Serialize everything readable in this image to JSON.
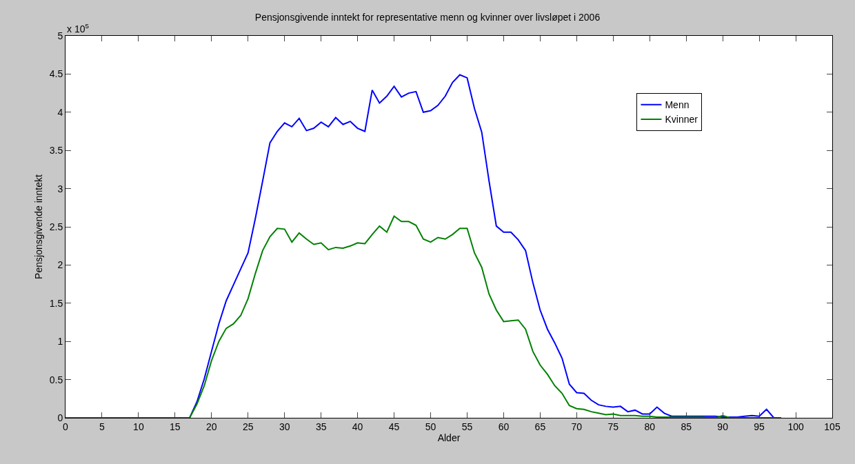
{
  "chart_data": {
    "type": "line",
    "title": "Pensjonsgivende inntekt for representative menn og kvinner over livsløpet i 2006",
    "xlabel": "Alder",
    "ylabel": "Pensjonsgivende inntekt",
    "annotations": [
      "x 10$^{5}$"
    ],
    "x": [
      0,
      1,
      2,
      3,
      4,
      5,
      6,
      7,
      8,
      9,
      10,
      11,
      12,
      13,
      14,
      15,
      16,
      17,
      18,
      19,
      20,
      21,
      22,
      23,
      24,
      25,
      26,
      27,
      28,
      29,
      30,
      31,
      32,
      33,
      34,
      35,
      36,
      37,
      38,
      39,
      40,
      41,
      42,
      43,
      44,
      45,
      46,
      47,
      48,
      49,
      50,
      51,
      52,
      53,
      54,
      55,
      56,
      57,
      58,
      59,
      60,
      61,
      62,
      63,
      64,
      65,
      66,
      67,
      68,
      69,
      70,
      71,
      72,
      73,
      74,
      75,
      76,
      77,
      78,
      79,
      80,
      81,
      82,
      83,
      84,
      85,
      86,
      87,
      88,
      89,
      90,
      91,
      92,
      93,
      94,
      95,
      96,
      97,
      98
    ],
    "series": [
      {
        "name": "Menn",
        "color": "#0000ff",
        "values": [
          null,
          null,
          null,
          null,
          null,
          null,
          null,
          null,
          null,
          null,
          null,
          null,
          null,
          null,
          null,
          null,
          0,
          0,
          0.21,
          0.51,
          0.87,
          1.23,
          1.53,
          1.74,
          1.95,
          2.16,
          2.61,
          3.1,
          3.6,
          3.75,
          3.86,
          3.81,
          3.92,
          3.76,
          3.79,
          3.87,
          3.81,
          3.93,
          3.84,
          3.88,
          3.79,
          3.75,
          4.29,
          4.12,
          4.21,
          4.34,
          4.2,
          4.25,
          4.27,
          4.0,
          4.02,
          4.09,
          4.21,
          4.39,
          4.49,
          4.45,
          4.05,
          3.74,
          3.1,
          2.51,
          2.43,
          2.43,
          2.33,
          2.19,
          1.77,
          1.41,
          1.16,
          0.98,
          0.78,
          0.44,
          0.33,
          0.32,
          0.23,
          0.17,
          0.15,
          0.14,
          0.15,
          0.08,
          0.1,
          0.05,
          0.05,
          0.14,
          0.06,
          0.02,
          0.02,
          0.02,
          0.02,
          0.02,
          0.02,
          0.02,
          0.01,
          0.01,
          0.01,
          0.02,
          0.03,
          0.02,
          0.11,
          0,
          0
        ]
      },
      {
        "name": "Kvinner",
        "color": "#008000",
        "values": [
          0,
          0,
          0,
          0,
          0,
          0,
          0,
          0,
          0,
          0,
          0,
          0,
          0,
          0,
          0,
          0,
          0,
          0,
          0.18,
          0.42,
          0.75,
          1.0,
          1.17,
          1.23,
          1.34,
          1.56,
          1.89,
          2.19,
          2.37,
          2.48,
          2.47,
          2.3,
          2.42,
          2.34,
          2.27,
          2.29,
          2.2,
          2.23,
          2.22,
          2.25,
          2.29,
          2.28,
          2.4,
          2.51,
          2.43,
          2.64,
          2.57,
          2.57,
          2.52,
          2.34,
          2.3,
          2.36,
          2.34,
          2.4,
          2.48,
          2.48,
          2.16,
          1.97,
          1.62,
          1.41,
          1.26,
          1.27,
          1.28,
          1.16,
          0.87,
          0.69,
          0.57,
          0.42,
          0.32,
          0.16,
          0.12,
          0.11,
          0.08,
          0.06,
          0.04,
          0.05,
          0.03,
          0.03,
          0.03,
          0.02,
          0.02,
          0.01,
          0.01,
          0.01,
          0.01,
          0.01,
          0.01,
          0.01,
          0,
          0,
          0.03,
          0,
          0,
          0,
          0,
          0,
          0,
          0,
          0
        ]
      }
    ],
    "xlim": [
      0,
      105
    ],
    "xticks": [
      0,
      5,
      10,
      15,
      20,
      25,
      30,
      35,
      40,
      45,
      50,
      55,
      60,
      65,
      70,
      75,
      80,
      85,
      90,
      95,
      100,
      105
    ],
    "ylim": [
      0,
      5
    ],
    "yticks": [
      0,
      0.5,
      1,
      1.5,
      2,
      2.5,
      3,
      3.5,
      4,
      4.5,
      5
    ],
    "grid": false,
    "legend": "top right",
    "marker": "none",
    "line_style": "solid"
  }
}
